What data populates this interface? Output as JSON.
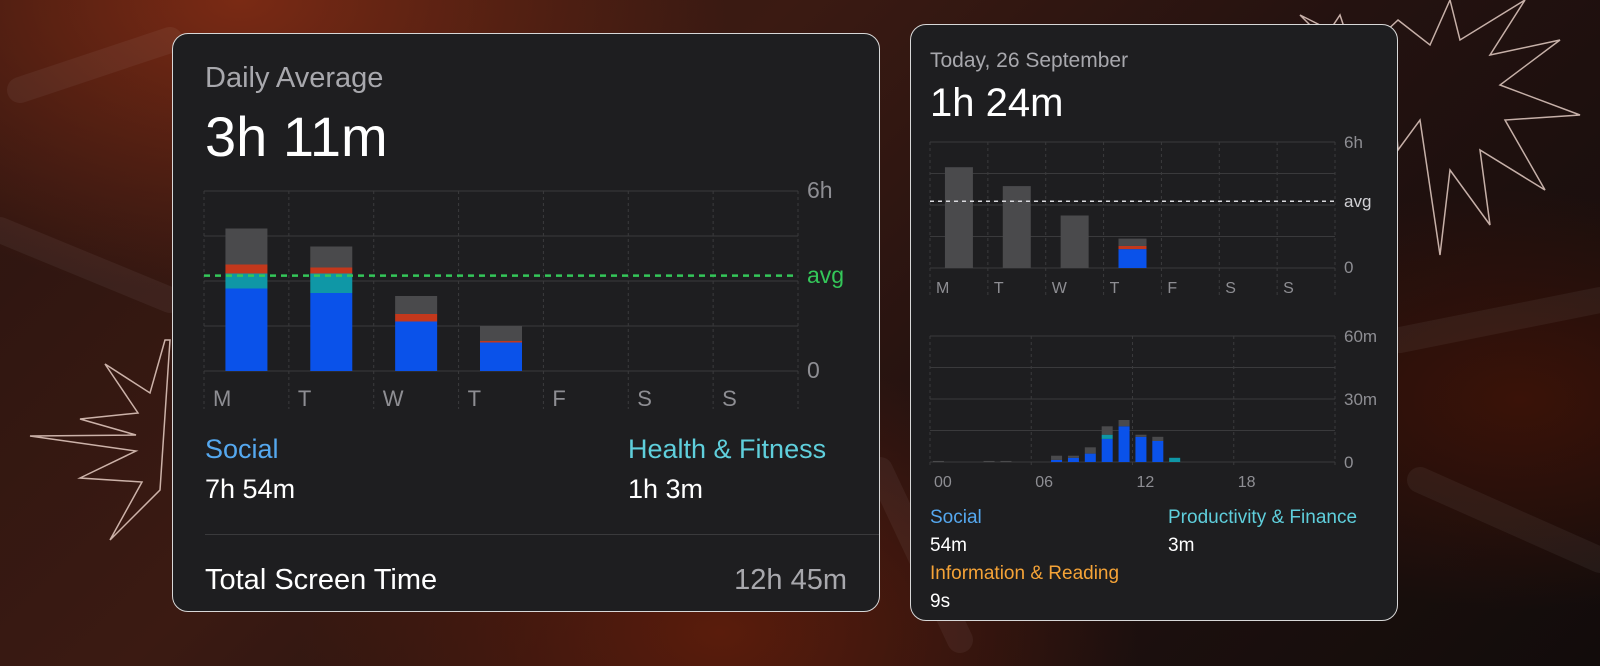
{
  "colors": {
    "social": "#0a52ea",
    "health": "#0f97a6",
    "red": "#c3381c",
    "gray": "#4a4a4c",
    "avg_green": "#34c759",
    "label_blue": "#55a8ef",
    "label_teal": "#5fcfdc",
    "label_orange": "#f5a337"
  },
  "card_weekly": {
    "title": "Daily Average",
    "value": "3h 11m",
    "y_top_label": "6h",
    "avg_label": "avg",
    "y_zero_label": "0",
    "categories": [
      {
        "label": "Social",
        "value": "7h 54m"
      },
      {
        "label": "Health & Fitness",
        "value": "1h 3m"
      }
    ],
    "total_label": "Total Screen Time",
    "total_value": "12h 45m"
  },
  "card_today": {
    "title": "Today, 26 September",
    "value": "1h 24m",
    "week_y_top": "6h",
    "week_avg": "avg",
    "week_y_zero": "0",
    "hour_y_top": "60m",
    "hour_y_mid": "30m",
    "hour_y_zero": "0",
    "categories": [
      {
        "label": "Social",
        "value": "54m"
      },
      {
        "label": "Productivity & Finance",
        "value": "3m"
      },
      {
        "label": "Information & Reading",
        "value": "9s"
      }
    ]
  },
  "chart_data": [
    {
      "type": "bar",
      "title": "",
      "categories": [
        "M",
        "T",
        "W",
        "T",
        "F",
        "S",
        "S"
      ],
      "stacked": true,
      "ylim": [
        0,
        6
      ],
      "y_unit": "h",
      "average": 3.18,
      "series": [
        {
          "name": "Social",
          "values": [
            2.75,
            2.6,
            1.65,
            0.95,
            0,
            0,
            0
          ]
        },
        {
          "name": "Health & Fitness",
          "values": [
            0.5,
            0.65,
            0,
            0,
            0,
            0,
            0
          ]
        },
        {
          "values": [
            0.3,
            0.2,
            0.25,
            0.05,
            0,
            0,
            0
          ]
        },
        {
          "values": [
            1.2,
            0.7,
            0.6,
            0.5,
            0,
            0,
            0
          ]
        }
      ]
    },
    {
      "type": "bar",
      "categories": [
        "M",
        "T",
        "W",
        "T",
        "F",
        "S",
        "S"
      ],
      "ylim": [
        0,
        6
      ],
      "y_unit": "h",
      "average": 3.18,
      "series": [
        {
          "name": "Social",
          "values": [
            0,
            0,
            0,
            0.9,
            0,
            0,
            0
          ]
        },
        {
          "values": [
            0,
            0,
            0,
            0.15,
            0,
            0,
            0
          ]
        },
        {
          "values": [
            4.8,
            3.9,
            2.5,
            0.35,
            0,
            0,
            0
          ]
        }
      ]
    },
    {
      "type": "bar",
      "x_tick_labels": [
        "00",
        "06",
        "12",
        "18"
      ],
      "categories": [
        "00",
        "01",
        "02",
        "03",
        "04",
        "05",
        "06",
        "07",
        "08",
        "09",
        "10",
        "11",
        "12",
        "13",
        "14",
        "15",
        "16",
        "17",
        "18",
        "19",
        "20",
        "21",
        "22",
        "23"
      ],
      "ylim": [
        0,
        60
      ],
      "y_unit": "m",
      "series": [
        {
          "name": "Social",
          "values": [
            0,
            0,
            0,
            0,
            0,
            0,
            0,
            1,
            2,
            4,
            11,
            17,
            12,
            10,
            0,
            0,
            0,
            0,
            0,
            0,
            0,
            0,
            0,
            0
          ]
        },
        {
          "name": "Productivity & Finance",
          "values": [
            0,
            0,
            0,
            0,
            0,
            0,
            0,
            0,
            0,
            0,
            2,
            0,
            0,
            0,
            2,
            0,
            0,
            0,
            0,
            0,
            0,
            0,
            0,
            0
          ]
        },
        {
          "values": [
            0.5,
            0,
            0,
            0.5,
            0.5,
            0,
            0,
            2,
            1,
            3,
            4,
            3,
            1,
            2,
            0,
            0,
            0,
            0,
            0,
            0,
            0,
            0,
            0,
            0
          ]
        }
      ]
    }
  ]
}
